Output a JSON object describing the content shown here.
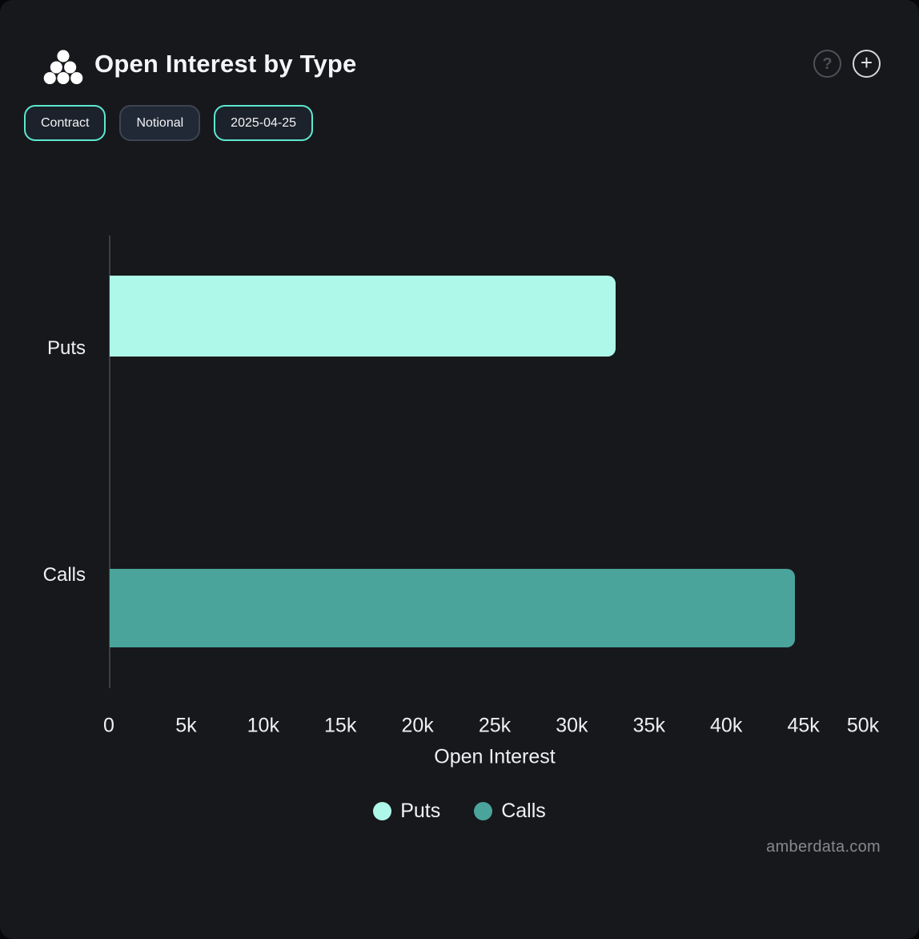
{
  "header": {
    "title": "Open Interest by Type"
  },
  "actions": {
    "help_label": "?",
    "add_label": "+"
  },
  "toolbar": {
    "contract_label": "Contract",
    "notional_label": "Notional",
    "date_label": "2025-04-25"
  },
  "chart_data": {
    "type": "bar",
    "orientation": "horizontal",
    "title": "Open Interest by Type",
    "categories": [
      "Puts",
      "Calls"
    ],
    "values": [
      32800,
      44400
    ],
    "series_colors": [
      "#AEF8E9",
      "#4AA49B"
    ],
    "xlabel": "Open Interest",
    "xlim": [
      0,
      50000
    ],
    "x_tick_labels": [
      "0",
      "5k",
      "10k",
      "15k",
      "20k",
      "25k",
      "30k",
      "35k",
      "40k",
      "45k",
      "50k"
    ],
    "x_tick_values": [
      0,
      5000,
      10000,
      15000,
      20000,
      25000,
      30000,
      35000,
      40000,
      45000,
      50000
    ],
    "legend": [
      {
        "label": "Puts",
        "color": "#AEF8E9"
      },
      {
        "label": "Calls",
        "color": "#4AA49B"
      }
    ],
    "legend_position": "bottom",
    "grid": false
  },
  "watermark": "amberdata.com",
  "colors": {
    "card_background": "#17181B",
    "accent_border": "#5EE8D0",
    "inactive_border": "#3E4452",
    "puts": "#AEF8E9",
    "calls": "#4AA49B",
    "axis_line": "#3B3E43",
    "text": "#F2F3F5",
    "muted_text": "#85888D"
  }
}
